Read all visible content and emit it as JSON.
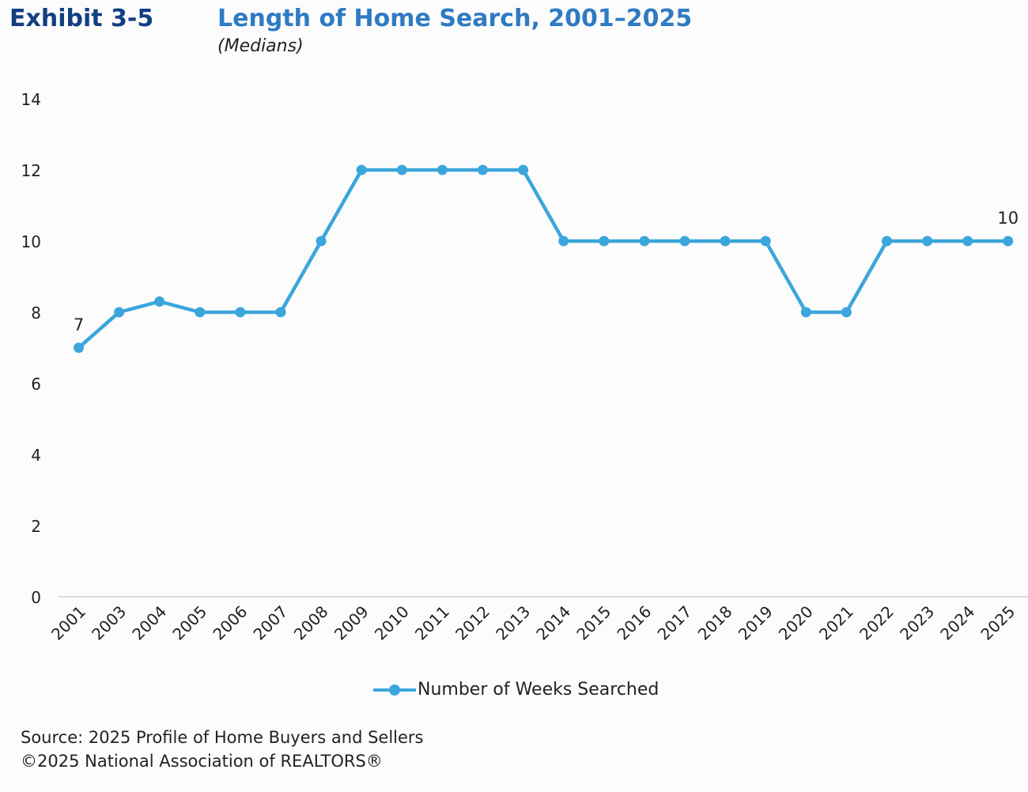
{
  "header": {
    "exhibit": "Exhibit 3-5",
    "title": "Length of Home Search, 2001–2025",
    "subtitle": "(Medians)"
  },
  "legend": {
    "label": "Number of Weeks Searched"
  },
  "footer": {
    "source": "Source: 2025 Profile of Home Buyers and Sellers",
    "copyright": "©2025 National Association of REALTORS®"
  },
  "colors": {
    "series": "#3ba6dc",
    "exhibit": "#123f80",
    "title": "#2e7bc3",
    "axis": "#cfcfcf"
  },
  "chart_data": {
    "type": "line",
    "title": "Length of Home Search, 2001–2025",
    "xlabel": "",
    "ylabel": "",
    "ylim": [
      0,
      14
    ],
    "yticks": [
      0,
      2,
      4,
      6,
      8,
      10,
      12,
      14
    ],
    "grid": false,
    "legend_position": "bottom-center",
    "categories": [
      "2001",
      "2003",
      "2004",
      "2005",
      "2006",
      "2007",
      "2008",
      "2009",
      "2010",
      "2011",
      "2012",
      "2013",
      "2014",
      "2015",
      "2016",
      "2017",
      "2018",
      "2019",
      "2020",
      "2021",
      "2022",
      "2023",
      "2024",
      "2025"
    ],
    "series": [
      {
        "name": "Number of Weeks Searched",
        "values": [
          7,
          8,
          8.3,
          8,
          8,
          8,
          10,
          12,
          12,
          12,
          12,
          12,
          10,
          10,
          10,
          10,
          10,
          10,
          8,
          8,
          10,
          10,
          10,
          10
        ]
      }
    ],
    "annotations": [
      {
        "category": "2001",
        "text": "7"
      },
      {
        "category": "2025",
        "text": "10"
      }
    ]
  }
}
